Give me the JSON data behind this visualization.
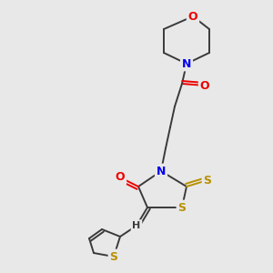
{
  "bg_color": "#e8e8e8",
  "bond_color": "#3a3a3a",
  "atom_colors": {
    "S": "#b89000",
    "N": "#0000ee",
    "O": "#ee0000",
    "H": "#3a3a3a",
    "C": "#3a3a3a"
  }
}
